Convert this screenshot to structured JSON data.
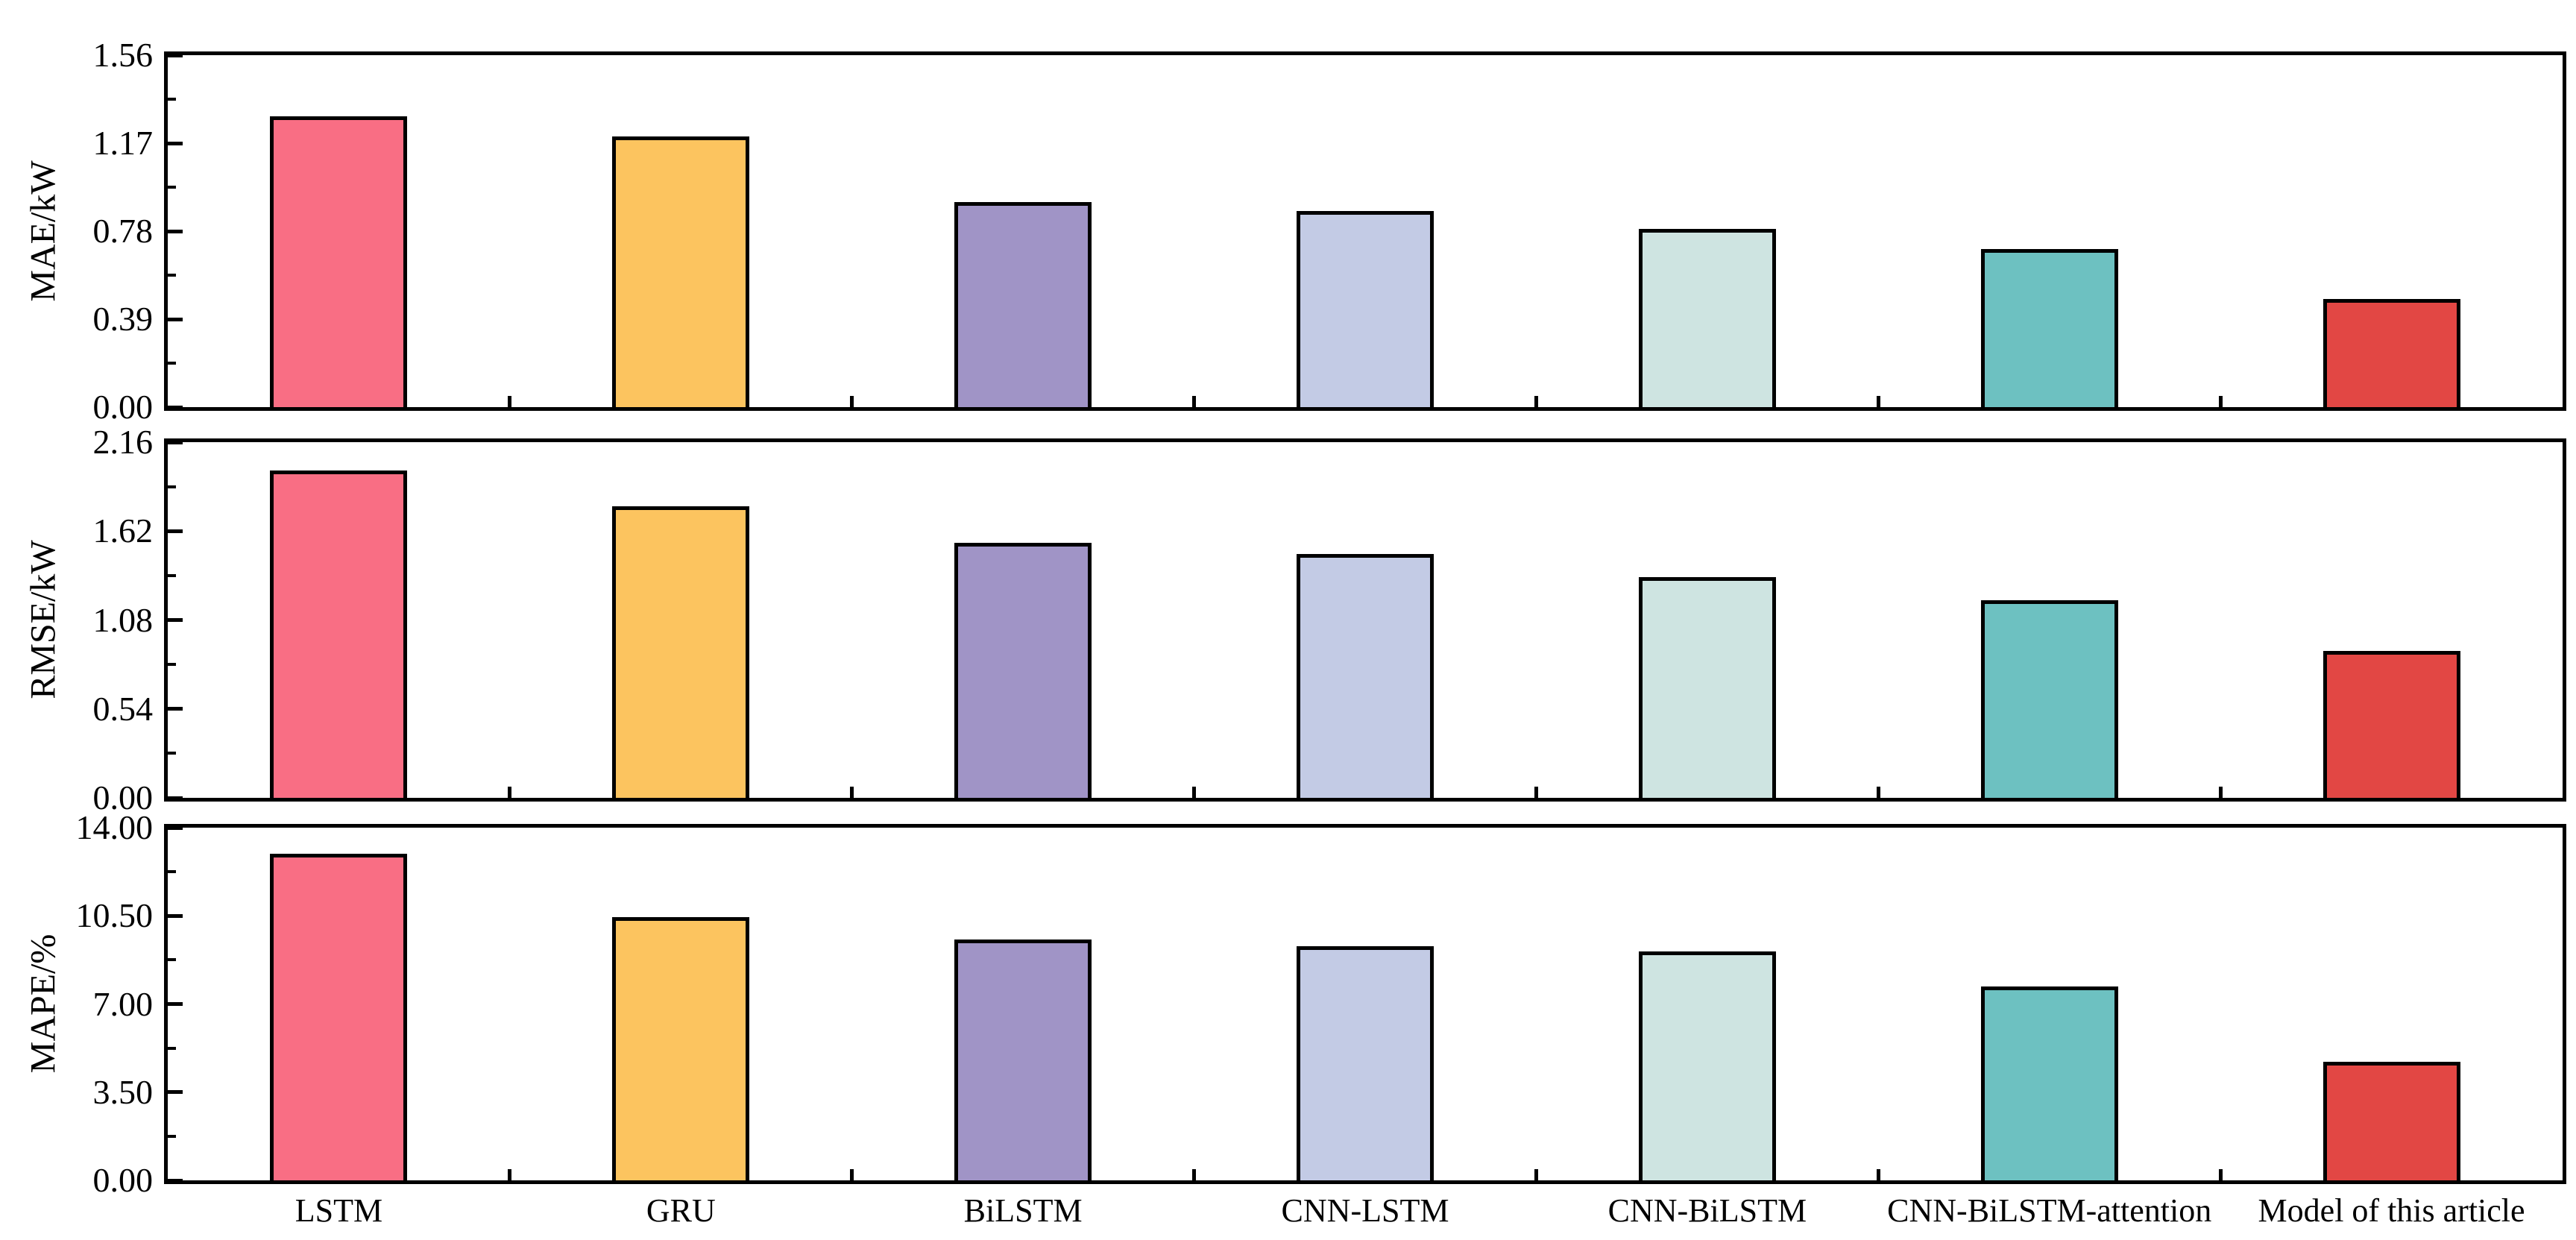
{
  "chart_data": {
    "type": "bar",
    "title": "",
    "categories": [
      "LSTM",
      "GRU",
      "BiLSTM",
      "CNN-LSTM",
      "CNN-BiLSTM",
      "CNN-BiLSTM-attention",
      "Model of this article"
    ],
    "bar_colors": [
      "#F96E84",
      "#FCC45F",
      "#A094C6",
      "#C3CBE5",
      "#CEE4E1",
      "#6DC1C1",
      "#E24744"
    ],
    "panels": [
      {
        "ylabel": "MAE/kW",
        "ylim": [
          0,
          1.56
        ],
        "yticks": [
          "0.00",
          "0.39",
          "0.78",
          "1.17",
          "1.56"
        ],
        "values": [
          1.29,
          1.2,
          0.91,
          0.87,
          0.79,
          0.7,
          0.48
        ]
      },
      {
        "ylabel": "RMSE/kW",
        "ylim": [
          0,
          2.16
        ],
        "yticks": [
          "0.00",
          "0.54",
          "1.08",
          "1.62",
          "2.16"
        ],
        "values": [
          1.99,
          1.77,
          1.55,
          1.48,
          1.34,
          1.2,
          0.89
        ]
      },
      {
        "ylabel": "MAPE/%",
        "ylim": [
          0,
          14.0
        ],
        "yticks": [
          "0.00",
          "3.50",
          "7.00",
          "10.50",
          "14.00"
        ],
        "values": [
          12.95,
          10.45,
          9.55,
          9.3,
          9.1,
          7.7,
          4.7
        ]
      }
    ],
    "layout": {
      "grid": false,
      "legend": "none",
      "background": "#ffffff",
      "frame_color": "#000000",
      "bar_edge_color": "#000000",
      "tick_direction": "in"
    }
  }
}
